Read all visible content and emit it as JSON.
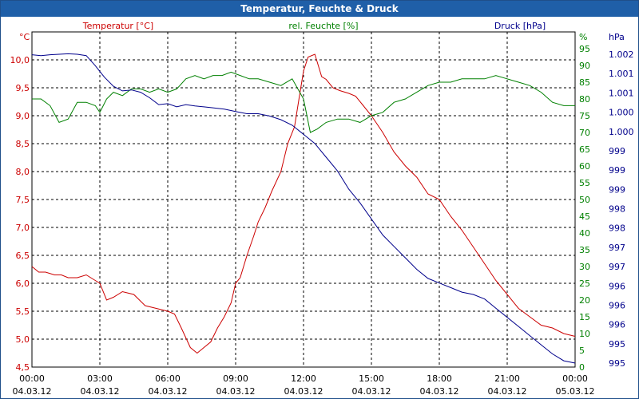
{
  "window_title": "Temperatur, Feuchte & Druck",
  "chart_data": {
    "type": "line",
    "title": "Temperatur, Feuchte & Druck",
    "x_ticks": [
      {
        "time": "00:00",
        "date": "04.03.12"
      },
      {
        "time": "03:00",
        "date": "04.03.12"
      },
      {
        "time": "06:00",
        "date": "04.03.12"
      },
      {
        "time": "09:00",
        "date": "04.03.12"
      },
      {
        "time": "12:00",
        "date": "04.03.12"
      },
      {
        "time": "15:00",
        "date": "04.03.12"
      },
      {
        "time": "18:00",
        "date": "04.03.12"
      },
      {
        "time": "21:00",
        "date": "04.03.12"
      },
      {
        "time": "00:00",
        "date": "05.03.12"
      }
    ],
    "xlim_hours": [
      0,
      24
    ],
    "grid": true,
    "axes": {
      "temperature": {
        "label": "Temperatur [°C]",
        "unit": "°C",
        "color": "#cc0000",
        "side": "left",
        "ylim": [
          4.5,
          10.5
        ],
        "ticks": [
          "4,5",
          "5,0",
          "5,5",
          "6,0",
          "6,5",
          "7,0",
          "7,5",
          "8,0",
          "8,5",
          "9,0",
          "9,5",
          "10,0"
        ]
      },
      "humidity": {
        "label": "rel. Feuchte [%]",
        "unit": "%",
        "color": "#008000",
        "side": "right",
        "ylim": [
          0,
          100
        ],
        "ticks": [
          "0",
          "5",
          "10",
          "15",
          "20",
          "25",
          "30",
          "35",
          "40",
          "45",
          "50",
          "55",
          "60",
          "65",
          "70",
          "75",
          "80",
          "85",
          "90",
          "95"
        ]
      },
      "pressure": {
        "label": "Druck [hPa]",
        "unit": "hPa",
        "color": "#00008b",
        "side": "right",
        "ticks": [
          "995",
          "995",
          "996",
          "996",
          "996",
          "997",
          "997",
          "998",
          "998",
          "999",
          "999",
          "999",
          "1.000",
          "1.000",
          "1.001",
          "1.001",
          "1.002"
        ]
      }
    },
    "series": [
      {
        "name": "Temperatur [°C]",
        "axis": "temperature",
        "color": "#cc0000",
        "x": [
          0,
          0.3,
          0.6,
          1,
          1.3,
          1.6,
          2,
          2.4,
          2.8,
          3.0,
          3.3,
          3.6,
          4,
          4.5,
          5,
          5.5,
          6,
          6.3,
          6.6,
          7,
          7.3,
          7.6,
          7.9,
          8.2,
          8.5,
          8.8,
          9,
          9.2,
          9.5,
          9.8,
          10,
          10.3,
          10.6,
          11,
          11.3,
          11.6,
          11.8,
          12,
          12.2,
          12.5,
          12.8,
          13,
          13.3,
          13.6,
          14,
          14.3,
          14.6,
          15,
          15.5,
          16,
          16.5,
          17,
          17.5,
          18,
          18.5,
          19,
          19.5,
          20,
          20.5,
          21,
          21.5,
          22,
          22.5,
          23,
          23.5,
          24
        ],
        "y": [
          6.3,
          6.2,
          6.2,
          6.15,
          6.15,
          6.1,
          6.1,
          6.15,
          6.05,
          6.0,
          5.7,
          5.75,
          5.85,
          5.8,
          5.6,
          5.55,
          5.5,
          5.45,
          5.2,
          4.85,
          4.75,
          4.85,
          4.95,
          5.2,
          5.4,
          5.65,
          6.0,
          6.1,
          6.5,
          6.85,
          7.1,
          7.35,
          7.65,
          8.0,
          8.5,
          8.8,
          9.3,
          9.8,
          10.05,
          10.1,
          9.7,
          9.65,
          9.5,
          9.45,
          9.4,
          9.35,
          9.2,
          9.0,
          8.7,
          8.35,
          8.1,
          7.9,
          7.6,
          7.5,
          7.2,
          6.95,
          6.65,
          6.35,
          6.05,
          5.8,
          5.55,
          5.4,
          5.25,
          5.2,
          5.1,
          5.05
        ]
      },
      {
        "name": "rel. Feuchte [%]",
        "axis": "humidity",
        "color": "#008000",
        "x": [
          0,
          0.4,
          0.8,
          1.2,
          1.6,
          2,
          2.4,
          2.8,
          3.0,
          3.3,
          3.6,
          4,
          4.4,
          4.8,
          5.2,
          5.6,
          6,
          6.4,
          6.8,
          7.2,
          7.6,
          8,
          8.4,
          8.8,
          9.2,
          9.6,
          10,
          10.5,
          11,
          11.5,
          12,
          12.3,
          12.6,
          13,
          13.5,
          14,
          14.5,
          15,
          15.5,
          16,
          16.5,
          17,
          17.5,
          18,
          18.5,
          19,
          19.5,
          20,
          20.5,
          21,
          21.5,
          22,
          22.5,
          23,
          23.5,
          24
        ],
        "y": [
          80,
          80,
          78,
          73,
          74,
          79,
          79,
          78,
          76,
          80,
          82,
          81,
          83,
          83,
          82,
          83,
          82,
          83,
          86,
          87,
          86,
          87,
          87,
          88,
          87,
          86,
          86,
          85,
          84,
          86,
          80,
          70,
          71,
          73,
          74,
          74,
          73,
          75,
          76,
          79,
          80,
          82,
          84,
          85,
          85,
          86,
          86,
          86,
          87,
          86,
          85,
          84,
          82,
          79,
          78,
          78
        ]
      },
      {
        "name": "Druck [hPa]",
        "axis": "pressure",
        "color": "#00008b",
        "x": [
          0,
          0.4,
          0.8,
          1.2,
          1.6,
          2,
          2.4,
          2.8,
          3.2,
          3.6,
          4,
          4.4,
          4.8,
          5.2,
          5.6,
          6,
          6.4,
          6.8,
          7.2,
          7.6,
          8,
          8.5,
          9,
          9.5,
          10,
          10.5,
          11,
          11.5,
          12,
          12.5,
          13,
          13.5,
          14,
          14.5,
          15,
          15.5,
          16,
          16.5,
          17,
          17.5,
          18,
          18.5,
          19,
          19.5,
          20,
          20.5,
          21,
          21.5,
          22,
          22.5,
          23,
          23.5,
          24
        ],
        "y": [
          1002.04,
          1002.02,
          1002.04,
          1002.05,
          1002.06,
          1002.05,
          1002.02,
          1001.8,
          1001.55,
          1001.35,
          1001.25,
          1001.27,
          1001.22,
          1001.1,
          1000.95,
          1000.97,
          1000.9,
          1000.95,
          1000.92,
          1000.9,
          1000.88,
          1000.85,
          1000.8,
          1000.75,
          1000.75,
          1000.7,
          1000.62,
          1000.5,
          1000.3,
          1000.1,
          999.8,
          999.5,
          999.1,
          998.8,
          998.45,
          998.1,
          997.85,
          997.6,
          997.35,
          997.15,
          997.05,
          996.95,
          996.85,
          996.8,
          996.7,
          996.5,
          996.3,
          996.1,
          995.9,
          995.7,
          995.5,
          995.35,
          995.3
        ]
      }
    ]
  }
}
